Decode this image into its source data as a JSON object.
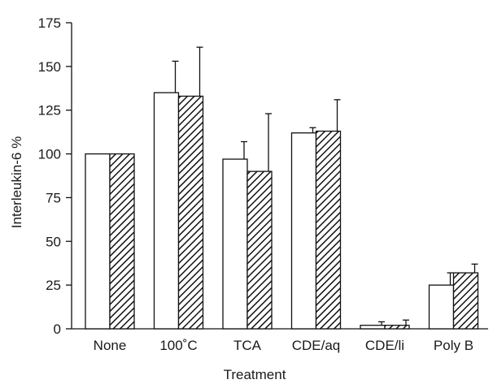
{
  "chart_data": {
    "type": "bar",
    "title": "",
    "xlabel": "Treatment",
    "ylabel": "Interleukin-6  %",
    "ylim": [
      0,
      175
    ],
    "yticks": [
      0,
      25,
      50,
      75,
      100,
      125,
      150,
      175
    ],
    "grid": false,
    "legend": "none",
    "categories": [
      "None",
      "100˚C",
      "TCA",
      "CDE/aq",
      "CDE/li",
      "Poly B"
    ],
    "series": [
      {
        "fill": "white",
        "values": [
          100,
          135,
          97,
          112,
          2,
          25
        ],
        "errors": [
          0,
          18,
          10,
          3,
          2,
          7
        ]
      },
      {
        "fill": "hatched",
        "values": [
          100,
          133,
          90,
          113,
          2,
          32
        ],
        "errors": [
          0,
          28,
          33,
          18,
          3,
          5
        ]
      }
    ]
  }
}
